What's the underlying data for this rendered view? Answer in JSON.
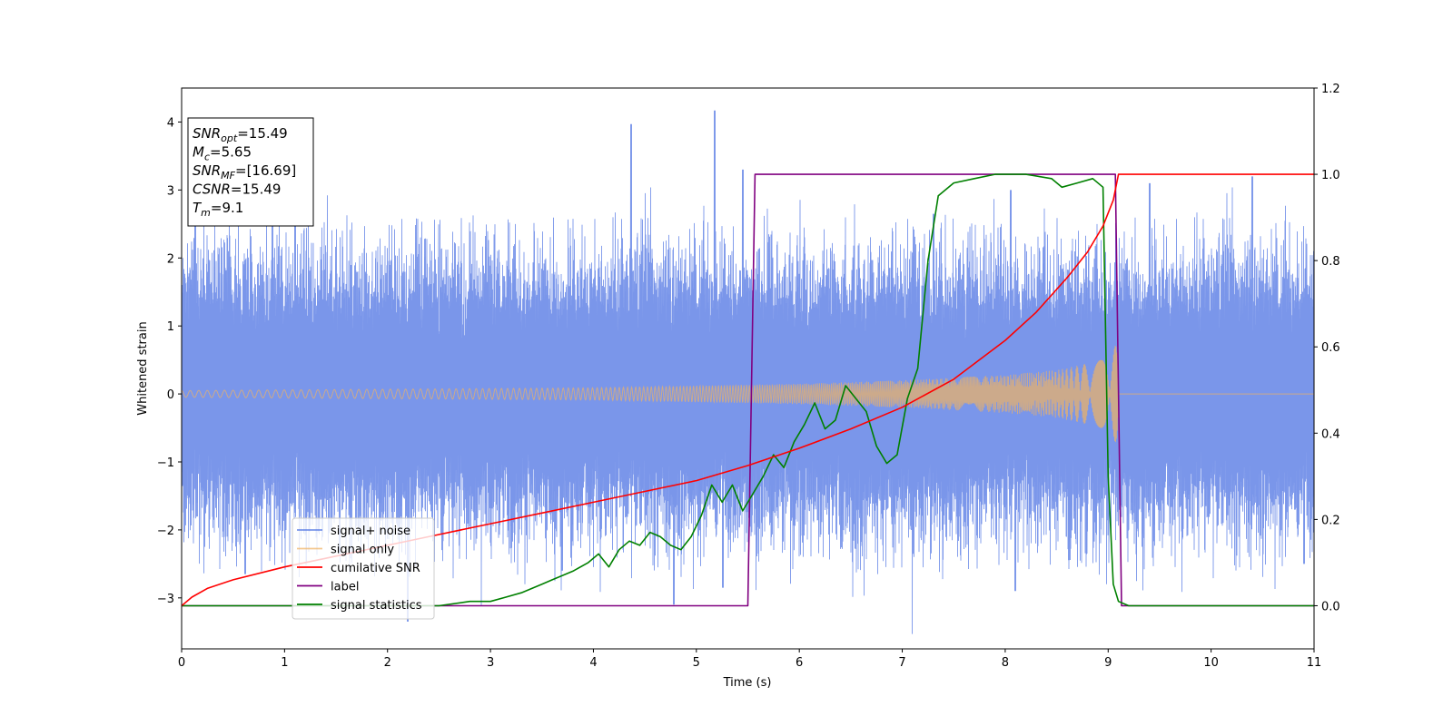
{
  "chart_data": {
    "type": "line",
    "title": "",
    "xlabel": "Time (s)",
    "ylabel": "Whitened strain",
    "ylabel_right": "",
    "xlim": [
      0,
      11
    ],
    "ylim": [
      -3.75,
      4.5
    ],
    "ylim_right": [
      -0.1,
      1.2
    ],
    "x_ticks": [
      0,
      1,
      2,
      3,
      4,
      5,
      6,
      7,
      8,
      9,
      10,
      11
    ],
    "y_ticks": [
      -3,
      -2,
      -1,
      0,
      1,
      2,
      3,
      4
    ],
    "y_ticks_right": [
      0.0,
      0.2,
      0.4,
      0.6,
      0.8,
      1.0,
      1.2
    ],
    "grid": false,
    "legend_position": "lower-left",
    "info_box": {
      "position": "top-left",
      "lines": [
        {
          "base": "SNR",
          "sub": "opt",
          "rest": "=15.49"
        },
        {
          "base": "M",
          "sub": "c",
          "rest": "=5.65"
        },
        {
          "base": "SNR",
          "sub": "MF",
          "rest": "=[16.69]"
        },
        {
          "base": "CSNR",
          "sub": "",
          "rest": "=15.49"
        },
        {
          "base": "T",
          "sub": "m",
          "rest": "=9.1"
        }
      ]
    },
    "series": [
      {
        "name": "signal+ noise",
        "axis": "left",
        "color": "#4169e1",
        "opacity": 0.7,
        "kind": "noise-band",
        "band_typical": 1.1,
        "spikes": [
          [
            0.13,
            2.6
          ],
          [
            0.62,
            -2.65
          ],
          [
            1.1,
            2.55
          ],
          [
            2.2,
            -3.35
          ],
          [
            3.7,
            -2.6
          ],
          [
            4.37,
            3.97
          ],
          [
            4.78,
            -3.1
          ],
          [
            5.18,
            4.17
          ],
          [
            5.26,
            -2.85
          ],
          [
            5.45,
            3.3
          ],
          [
            7.3,
            2.65
          ],
          [
            8.05,
            3.0
          ],
          [
            8.1,
            -2.9
          ],
          [
            9.4,
            3.1
          ],
          [
            10.4,
            3.2
          ],
          [
            10.9,
            -2.5
          ]
        ]
      },
      {
        "name": "signal only",
        "axis": "left",
        "color": "#f0b262",
        "opacity": 0.7,
        "kind": "chirp-envelope",
        "amplitude": [
          [
            0,
            0.05
          ],
          [
            2,
            0.07
          ],
          [
            4,
            0.09
          ],
          [
            6,
            0.15
          ],
          [
            7,
            0.2
          ],
          [
            8,
            0.28
          ],
          [
            8.5,
            0.35
          ],
          [
            8.8,
            0.45
          ],
          [
            9.0,
            0.62
          ],
          [
            9.1,
            0.75
          ]
        ],
        "end": 9.1
      },
      {
        "name": "cumilative SNR",
        "axis": "right",
        "color": "#ff0000",
        "x": [
          0,
          0.1,
          0.25,
          0.5,
          1,
          1.5,
          2,
          2.5,
          3,
          3.5,
          4,
          4.5,
          5,
          5.5,
          6,
          6.5,
          7,
          7.5,
          8,
          8.3,
          8.6,
          8.8,
          8.95,
          9.05,
          9.1,
          11
        ],
        "values": [
          0,
          0.02,
          0.04,
          0.06,
          0.09,
          0.115,
          0.14,
          0.165,
          0.19,
          0.215,
          0.24,
          0.265,
          0.29,
          0.325,
          0.365,
          0.41,
          0.46,
          0.525,
          0.615,
          0.68,
          0.76,
          0.82,
          0.88,
          0.94,
          1.0,
          1.0
        ]
      },
      {
        "name": "label",
        "axis": "right",
        "color": "#800080",
        "x": [
          0,
          5.5,
          5.57,
          9.07,
          9.13,
          11
        ],
        "values": [
          0,
          0,
          1.0,
          1.0,
          0,
          0
        ]
      },
      {
        "name": "signal statistics",
        "axis": "right",
        "color": "#008000",
        "x": [
          0,
          2.5,
          2.8,
          3.0,
          3.15,
          3.3,
          3.5,
          3.6,
          3.8,
          3.95,
          4.05,
          4.15,
          4.25,
          4.35,
          4.45,
          4.55,
          4.65,
          4.75,
          4.85,
          4.95,
          5.05,
          5.15,
          5.25,
          5.35,
          5.45,
          5.55,
          5.65,
          5.75,
          5.85,
          5.95,
          6.05,
          6.15,
          6.25,
          6.35,
          6.45,
          6.55,
          6.65,
          6.75,
          6.85,
          6.95,
          7.05,
          7.15,
          7.25,
          7.35,
          7.5,
          7.7,
          7.9,
          8.2,
          8.45,
          8.55,
          8.7,
          8.85,
          8.95,
          9.0,
          9.05,
          9.1,
          9.2,
          11
        ],
        "values": [
          0,
          0,
          0.01,
          0.01,
          0.02,
          0.03,
          0.05,
          0.06,
          0.08,
          0.1,
          0.12,
          0.09,
          0.13,
          0.15,
          0.14,
          0.17,
          0.16,
          0.14,
          0.13,
          0.16,
          0.21,
          0.28,
          0.24,
          0.28,
          0.22,
          0.26,
          0.3,
          0.35,
          0.32,
          0.38,
          0.42,
          0.47,
          0.41,
          0.43,
          0.51,
          0.48,
          0.45,
          0.37,
          0.33,
          0.35,
          0.48,
          0.55,
          0.8,
          0.95,
          0.98,
          0.99,
          1.0,
          1.0,
          0.99,
          0.97,
          0.98,
          0.99,
          0.97,
          0.3,
          0.05,
          0.01,
          0.0,
          0.0
        ]
      }
    ]
  }
}
